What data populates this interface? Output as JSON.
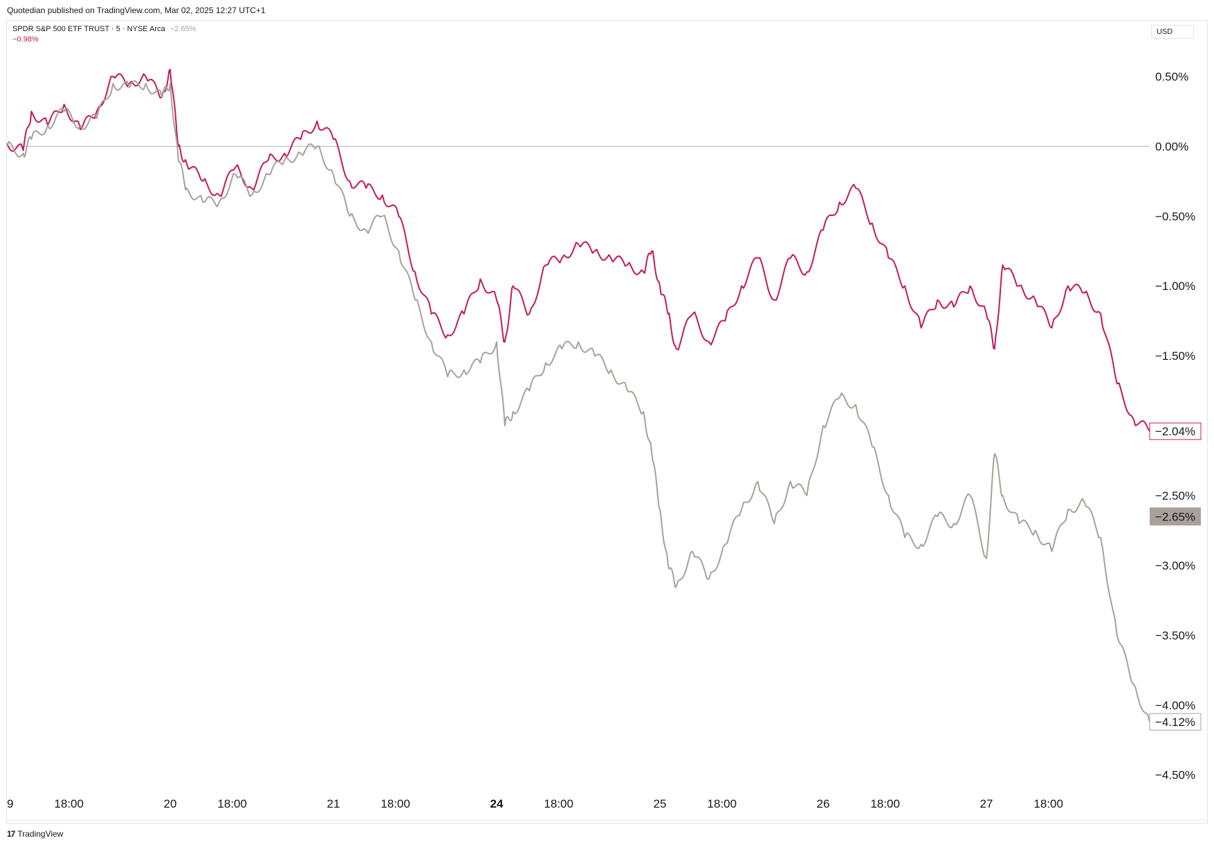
{
  "header": {
    "published": "Quotedian published on TradingView.com, Mar 02, 2025 12:27 UTC+1"
  },
  "legend": {
    "name": "SPDR S&P 500 ETF TRUST · 5 · NYSE Arca",
    "value1": "−2.65%",
    "value2": "−0.98%"
  },
  "currency": "USD",
  "footer": {
    "icon": "tv-logo-icon",
    "label": "TradingView"
  },
  "colors": {
    "series_a": "#c2185b",
    "series_b": "#a8a09a",
    "zero_line": "#b2b5be"
  },
  "chart_data": {
    "type": "line",
    "title": "",
    "xlabel": "",
    "ylabel": "",
    "ylim": [
      -4.65,
      0.75
    ],
    "y_ticks": [
      "0.50%",
      "0.00%",
      "−0.50%",
      "−1.00%",
      "−1.50%",
      "−2.50%",
      "−3.00%",
      "−3.50%",
      "−4.00%",
      "−4.50%"
    ],
    "y_tick_values": [
      0.5,
      0.0,
      -0.5,
      -1.0,
      -1.5,
      -2.5,
      -3.0,
      -3.5,
      -4.0,
      -4.5
    ],
    "x_ticks": [
      {
        "label": "9",
        "x": 0.0,
        "bold": false
      },
      {
        "label": "18:00",
        "x": 0.38,
        "bold": false
      },
      {
        "label": "20",
        "x": 1.0,
        "bold": false
      },
      {
        "label": "18:00",
        "x": 1.38,
        "bold": false
      },
      {
        "label": "21",
        "x": 2.0,
        "bold": false
      },
      {
        "label": "18:00",
        "x": 2.38,
        "bold": false
      },
      {
        "label": "24",
        "x": 3.0,
        "bold": true
      },
      {
        "label": "18:00",
        "x": 3.38,
        "bold": false
      },
      {
        "label": "25",
        "x": 4.0,
        "bold": false
      },
      {
        "label": "18:00",
        "x": 4.38,
        "bold": false
      },
      {
        "label": "26",
        "x": 5.0,
        "bold": false
      },
      {
        "label": "18:00",
        "x": 5.38,
        "bold": false
      },
      {
        "label": "27",
        "x": 6.0,
        "bold": false
      },
      {
        "label": "18:00",
        "x": 6.38,
        "bold": false
      }
    ],
    "xlim": [
      0.0,
      7.0
    ],
    "series": [
      {
        "color": "#c2185b",
        "last_label": "−2.04%",
        "x": [
          0.0,
          0.1,
          0.15,
          0.25,
          0.35,
          0.45,
          0.55,
          0.65,
          0.75,
          0.85,
          0.95,
          1.0,
          1.05,
          1.1,
          1.2,
          1.3,
          1.4,
          1.5,
          1.6,
          1.7,
          1.8,
          1.9,
          2.0,
          2.1,
          2.2,
          2.3,
          2.4,
          2.5,
          2.6,
          2.7,
          2.8,
          2.9,
          3.0,
          3.05,
          3.1,
          3.2,
          3.3,
          3.4,
          3.5,
          3.6,
          3.7,
          3.8,
          3.9,
          3.95,
          4.0,
          4.05,
          4.1,
          4.2,
          4.3,
          4.4,
          4.5,
          4.6,
          4.7,
          4.8,
          4.9,
          5.0,
          5.1,
          5.2,
          5.3,
          5.4,
          5.5,
          5.6,
          5.7,
          5.8,
          5.9,
          6.0,
          6.05,
          6.1,
          6.2,
          6.3,
          6.4,
          6.5,
          6.6,
          6.7,
          6.8,
          6.9,
          7.0
        ],
        "values": [
          0.02,
          -0.03,
          0.25,
          0.15,
          0.3,
          0.12,
          0.25,
          0.5,
          0.45,
          0.5,
          0.35,
          0.55,
          0.0,
          -0.12,
          -0.25,
          -0.35,
          -0.15,
          -0.3,
          -0.1,
          -0.05,
          0.05,
          0.18,
          0.05,
          -0.25,
          -0.3,
          -0.35,
          -0.5,
          -0.9,
          -1.2,
          -1.35,
          -1.2,
          -0.95,
          -1.1,
          -1.4,
          -1.0,
          -1.2,
          -0.85,
          -0.8,
          -0.7,
          -0.75,
          -0.8,
          -0.85,
          -0.9,
          -0.75,
          -1.0,
          -1.2,
          -1.45,
          -1.2,
          -1.4,
          -1.25,
          -1.0,
          -0.8,
          -1.1,
          -0.8,
          -0.9,
          -0.6,
          -0.4,
          -0.3,
          -0.55,
          -0.8,
          -1.0,
          -1.3,
          -1.1,
          -1.15,
          -1.0,
          -1.2,
          -1.45,
          -0.85,
          -1.0,
          -1.1,
          -1.3,
          -1.0,
          -1.05,
          -1.2,
          -1.7,
          -1.95,
          -2.04
        ]
      },
      {
        "color": "#a8a09a",
        "last_label": "−4.12%",
        "x": [
          0.0,
          0.1,
          0.15,
          0.25,
          0.35,
          0.45,
          0.55,
          0.65,
          0.75,
          0.85,
          0.95,
          1.0,
          1.05,
          1.1,
          1.2,
          1.3,
          1.4,
          1.5,
          1.6,
          1.7,
          1.8,
          1.9,
          2.0,
          2.1,
          2.2,
          2.3,
          2.4,
          2.5,
          2.6,
          2.7,
          2.8,
          2.9,
          3.0,
          3.05,
          3.1,
          3.2,
          3.3,
          3.4,
          3.5,
          3.6,
          3.7,
          3.8,
          3.9,
          3.95,
          4.0,
          4.05,
          4.1,
          4.2,
          4.3,
          4.4,
          4.5,
          4.6,
          4.7,
          4.8,
          4.9,
          5.0,
          5.1,
          5.2,
          5.3,
          5.4,
          5.5,
          5.6,
          5.7,
          5.8,
          5.9,
          6.0,
          6.05,
          6.1,
          6.2,
          6.3,
          6.4,
          6.5,
          6.6,
          6.7,
          6.8,
          6.9,
          7.0
        ],
        "values": [
          0.0,
          -0.05,
          0.05,
          0.15,
          0.25,
          0.15,
          0.2,
          0.45,
          0.42,
          0.45,
          0.35,
          0.45,
          -0.1,
          -0.3,
          -0.4,
          -0.4,
          -0.2,
          -0.35,
          -0.2,
          -0.1,
          -0.05,
          0.0,
          -0.2,
          -0.5,
          -0.6,
          -0.5,
          -0.75,
          -1.1,
          -1.4,
          -1.65,
          -1.6,
          -1.55,
          -1.4,
          -2.0,
          -1.9,
          -1.75,
          -1.55,
          -1.45,
          -1.4,
          -1.5,
          -1.6,
          -1.75,
          -1.9,
          -2.2,
          -2.6,
          -3.0,
          -3.15,
          -2.9,
          -3.1,
          -2.85,
          -2.6,
          -2.4,
          -2.7,
          -2.4,
          -2.5,
          -2.0,
          -1.8,
          -1.85,
          -2.15,
          -2.5,
          -2.8,
          -2.85,
          -2.65,
          -2.7,
          -2.5,
          -2.95,
          -2.2,
          -2.5,
          -2.7,
          -2.75,
          -2.9,
          -2.6,
          -2.55,
          -2.8,
          -3.5,
          -3.85,
          -4.12
        ]
      }
    ],
    "extra_price_label": {
      "text": "−2.65%",
      "value": -2.65
    }
  }
}
